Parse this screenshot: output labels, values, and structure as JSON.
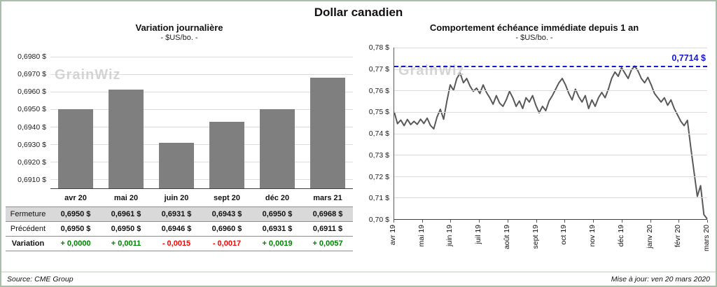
{
  "title": "Dollar canadien",
  "watermark": "GrainWiz",
  "footer": {
    "source": "Source: CME Group",
    "updated": "Mise à jour: ven 20 mars 2020"
  },
  "variation_colors": {
    "positive": "#008000",
    "negative": "#ff0000"
  },
  "table": {
    "header": [
      "avr 20",
      "mai 20",
      "juin 20",
      "sept 20",
      "déc 20",
      "mars 21"
    ],
    "rows": [
      {
        "label": "Fermeture",
        "style": "shaded",
        "values": [
          "0,6950 $",
          "0,6961 $",
          "0,6931 $",
          "0,6943 $",
          "0,6950 $",
          "0,6968 $"
        ]
      },
      {
        "label": "Précédent",
        "style": "plain",
        "values": [
          "0,6950 $",
          "0,6950 $",
          "0,6946 $",
          "0,6960 $",
          "0,6931 $",
          "0,6911 $"
        ]
      },
      {
        "label": "Variation",
        "style": "variation",
        "values": [
          "+ 0,0000",
          "+ 0,0011",
          "- 0,0015",
          "- 0,0017",
          "+ 0,0019",
          "+ 0,0057"
        ]
      }
    ]
  },
  "chart_data": [
    {
      "type": "bar",
      "title": "Variation  journalière",
      "subtitle": "- $US/bo. -",
      "categories": [
        "avr 20",
        "mai 20",
        "juin 20",
        "sept 20",
        "déc 20",
        "mars 21"
      ],
      "values": [
        0.695,
        0.6961,
        0.6931,
        0.6943,
        0.695,
        0.6968
      ],
      "ylim": [
        0.6905,
        0.6985
      ],
      "yticks": [
        0.691,
        0.692,
        0.693,
        0.694,
        0.695,
        0.696,
        0.697,
        0.698
      ],
      "tick_decimals": 4,
      "tick_suffix": " $",
      "bar_color": "#7f7f7f",
      "grid": true,
      "legend": "none"
    },
    {
      "type": "line",
      "title": "Comportement échéance immédiate depuis 1 an",
      "subtitle": "- $US/bo. -",
      "x_labels": [
        "avr 19",
        "mai 19",
        "juin 19",
        "juil 19",
        "août 19",
        "sept 19",
        "oct 19",
        "nov 19",
        "déc 19",
        "janv 20",
        "févr 20",
        "mars 20"
      ],
      "ylim": [
        0.7,
        0.78
      ],
      "yticks": [
        0.7,
        0.71,
        0.72,
        0.73,
        0.74,
        0.75,
        0.76,
        0.77,
        0.78
      ],
      "tick_decimals": 2,
      "tick_suffix": " $",
      "line_color": "#595959",
      "grid": true,
      "legend": "none",
      "reference_line": {
        "value": 0.7714,
        "label": "0,7714 $",
        "color": "#1717cc",
        "style": "dashed"
      },
      "values": [
        0.75,
        0.7445,
        0.7462,
        0.7436,
        0.7465,
        0.7441,
        0.7456,
        0.7442,
        0.7466,
        0.7446,
        0.7471,
        0.7437,
        0.7421,
        0.7476,
        0.7512,
        0.7466,
        0.7551,
        0.7626,
        0.7601,
        0.7656,
        0.7681,
        0.7636,
        0.7656,
        0.7621,
        0.7596,
        0.7611,
        0.7586,
        0.7626,
        0.7591,
        0.7566,
        0.7536,
        0.7576,
        0.7541,
        0.7526,
        0.7556,
        0.7596,
        0.7566,
        0.7526,
        0.7551,
        0.7516,
        0.7566,
        0.7546,
        0.7576,
        0.7531,
        0.7496,
        0.7526,
        0.7506,
        0.7551,
        0.7576,
        0.7606,
        0.7636,
        0.7656,
        0.7626,
        0.7586,
        0.7556,
        0.7606,
        0.7571,
        0.7546,
        0.7576,
        0.7516,
        0.7556,
        0.7526,
        0.7566,
        0.7591,
        0.7566,
        0.7606,
        0.7656,
        0.7686,
        0.7666,
        0.7706,
        0.7681,
        0.7656,
        0.7696,
        0.7714,
        0.7691,
        0.7656,
        0.7636,
        0.7661,
        0.7626,
        0.7586,
        0.7566,
        0.7546,
        0.7566,
        0.7531,
        0.7556,
        0.7516,
        0.7486,
        0.7456,
        0.7436,
        0.7461,
        0.7336,
        0.7221,
        0.7106,
        0.7156,
        0.7021,
        0.7001
      ]
    }
  ]
}
